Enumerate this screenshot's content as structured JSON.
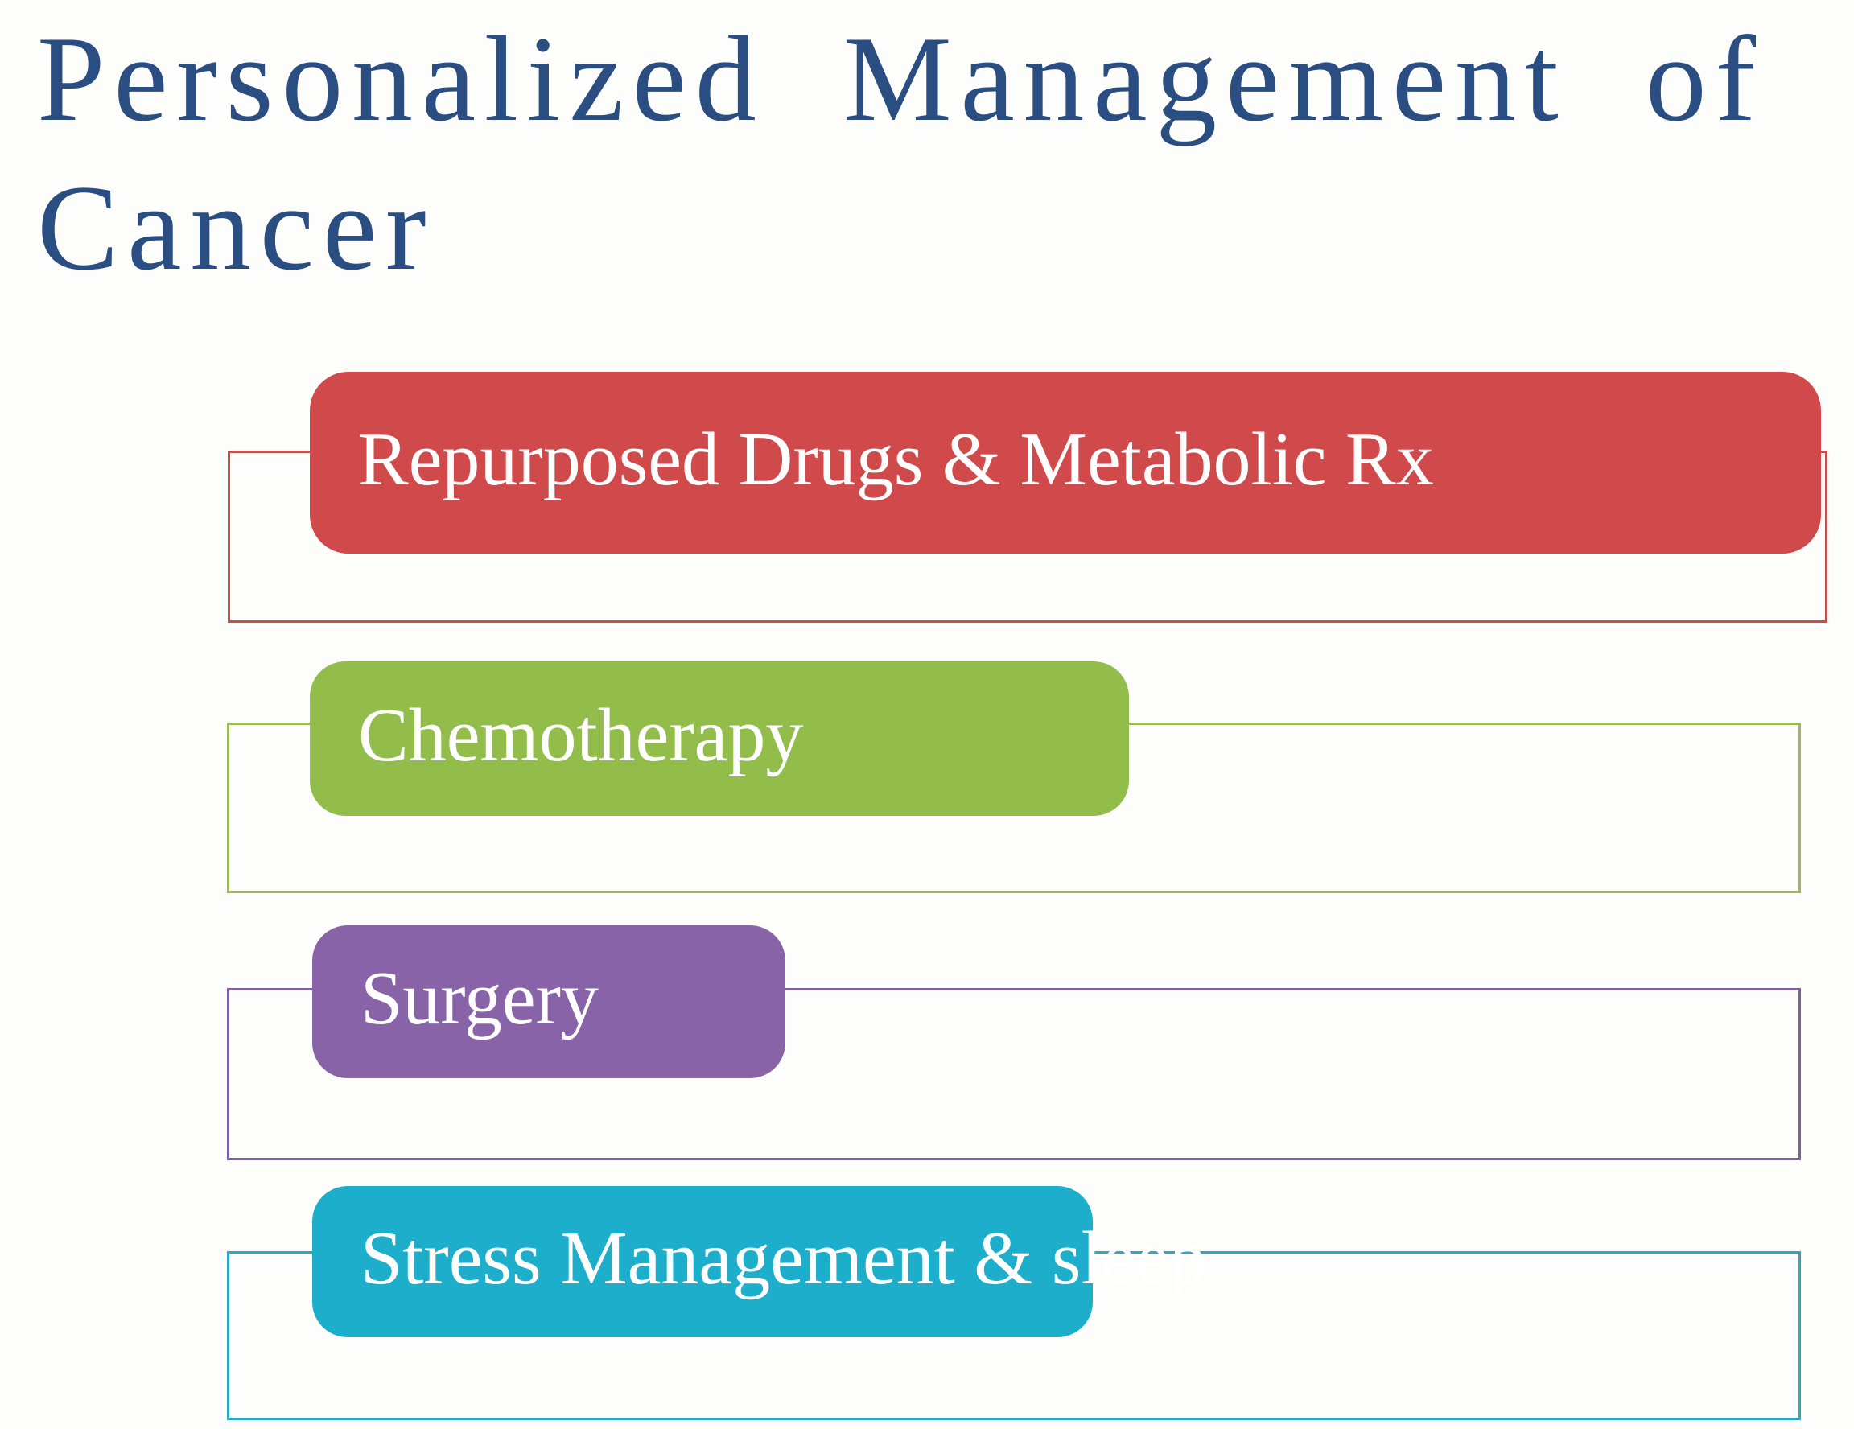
{
  "slide": {
    "title": "Personalized Management of Cancer",
    "title_color": "#2a4d82",
    "background": "#fdfdfc"
  },
  "diagram": {
    "type": "vertical-block-list",
    "items": [
      {
        "label": "Repurposed Drugs & Metabolic Rx",
        "fill": "#d04a4b",
        "outline": "#c4504e",
        "text_color": "#ffffff"
      },
      {
        "label": "Chemotherapy",
        "fill": "#92bd4b",
        "outline": "#9cba5c",
        "text_color": "#ffffff"
      },
      {
        "label": "Surgery",
        "fill": "#8963a8",
        "outline": "#7e61a1",
        "text_color": "#ffffff"
      },
      {
        "label": "Stress Management & sleep",
        "fill": "#1caecb",
        "outline": "#2ba8c4",
        "text_color": "#ffffff"
      }
    ]
  }
}
